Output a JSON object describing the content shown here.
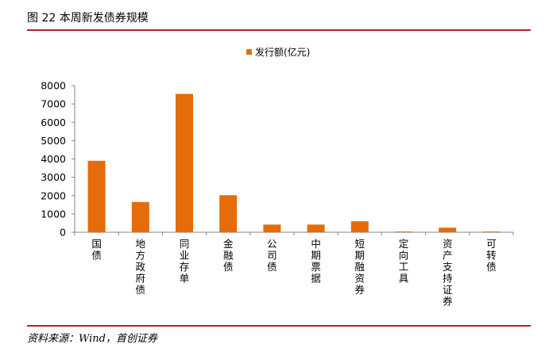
{
  "figure": {
    "title": "图 22 本周新发债券规模",
    "source": "资料来源：Wind，首创证券"
  },
  "chart_data": {
    "type": "bar",
    "categories": [
      "国债",
      "地方政府债",
      "同业存单",
      "金融债",
      "公司债",
      "中期票据",
      "短期融资券",
      "定向工具",
      "资产支持证券",
      "可转债"
    ],
    "series": [
      {
        "name": "发行额(亿元)",
        "color": "#e46c0a",
        "values": [
          3900,
          1650,
          7550,
          2020,
          420,
          420,
          600,
          40,
          250,
          40
        ]
      }
    ],
    "ylim": [
      0,
      8000
    ],
    "yticks": [
      0,
      1000,
      2000,
      3000,
      4000,
      5000,
      6000,
      7000,
      8000
    ],
    "grid": false,
    "legend": "top-center"
  }
}
